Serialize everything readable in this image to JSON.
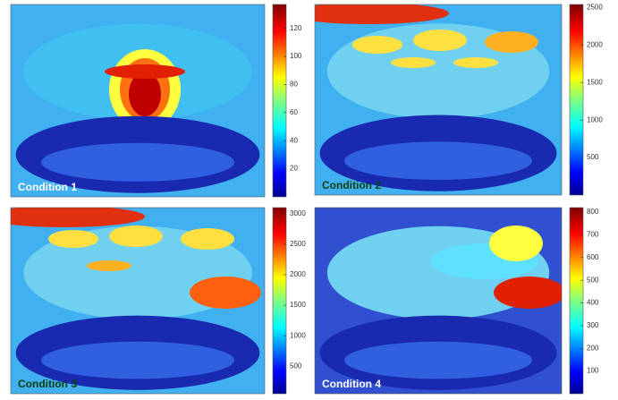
{
  "chart_data": [
    {
      "type": "image",
      "label": "Condition 1",
      "clim": [
        0,
        137
      ],
      "cticks": [
        20,
        40,
        60,
        80,
        100,
        120
      ]
    },
    {
      "type": "image",
      "label": "Condition 2",
      "clim": [
        0,
        2540
      ],
      "cticks": [
        500,
        1000,
        1500,
        2000,
        2500
      ]
    },
    {
      "type": "image",
      "label": "Condition 3",
      "clim": [
        50,
        3100
      ],
      "cticks": [
        500,
        1000,
        1500,
        2000,
        2500,
        3000
      ]
    },
    {
      "type": "image",
      "label": "Condition 4",
      "clim": [
        0,
        820
      ],
      "cticks": [
        100,
        200,
        300,
        400,
        500,
        600,
        700,
        800
      ]
    }
  ]
}
